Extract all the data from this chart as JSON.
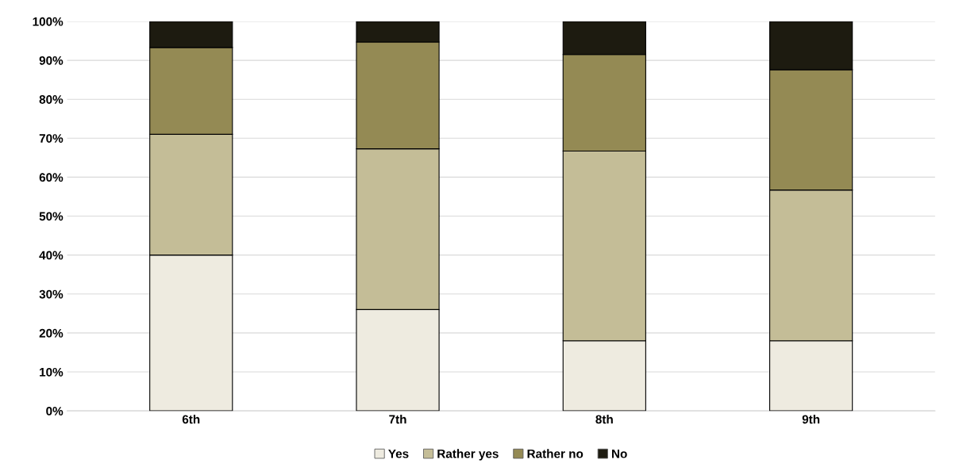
{
  "chart_data": {
    "type": "bar",
    "stacked": true,
    "categories": [
      "6th",
      "7th",
      "8th",
      "9th"
    ],
    "series": [
      {
        "name": "Yes",
        "color": "#eeebe0",
        "values": [
          40,
          26,
          18,
          18
        ]
      },
      {
        "name": "Rather yes",
        "color": "#c4bd97",
        "values": [
          31,
          41.3,
          48.7,
          38.7
        ]
      },
      {
        "name": "Rather no",
        "color": "#948a54",
        "values": [
          22.3,
          27.4,
          24.8,
          30.9
        ]
      },
      {
        "name": "No",
        "color": "#1d1b10",
        "values": [
          6.7,
          5.3,
          8.5,
          12.4
        ]
      }
    ],
    "ylim": [
      0,
      100
    ],
    "yticks": [
      {
        "value": 0,
        "label": "0%"
      },
      {
        "value": 10,
        "label": "10%"
      },
      {
        "value": 20,
        "label": "20%"
      },
      {
        "value": 30,
        "label": "30%"
      },
      {
        "value": 40,
        "label": "40%"
      },
      {
        "value": 50,
        "label": "50%"
      },
      {
        "value": 60,
        "label": "60%"
      },
      {
        "value": 70,
        "label": "70%"
      },
      {
        "value": 80,
        "label": "80%"
      },
      {
        "value": 90,
        "label": "90%"
      },
      {
        "value": 100,
        "label": "100%"
      }
    ],
    "grid": "y",
    "legend": "bottom"
  }
}
